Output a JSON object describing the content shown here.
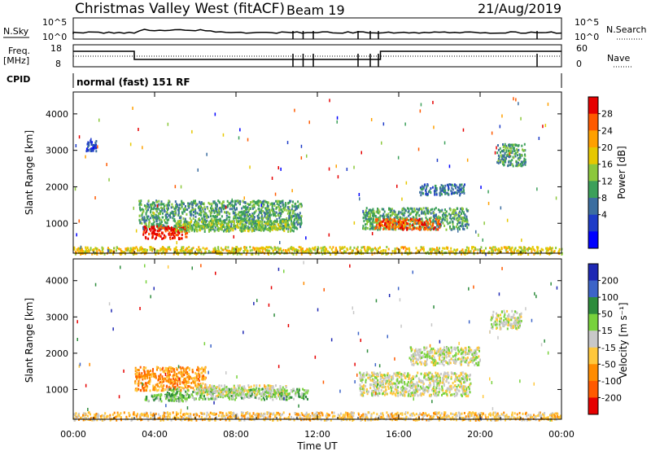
{
  "header": {
    "station": "Christmas Valley West (fitACF)",
    "beam": "Beam 19",
    "date": "21/Aug/2019"
  },
  "top_panels": {
    "nsky_label": "N.Sky",
    "nsky_ticks": [
      "10^5",
      "10^0"
    ],
    "nsearch_label": "N.Search",
    "nsearch_ticks": [
      "10^5",
      "10^0"
    ],
    "freq_label_line1": "Freq.",
    "freq_label_line2": "[MHz]",
    "freq_ticks": [
      "18",
      "8"
    ],
    "nave_label": "Nave",
    "nave_ticks": [
      "60",
      "0"
    ],
    "cpid_label": "CPID",
    "cpid_value": "normal (fast) 151 RF"
  },
  "x_axis": {
    "label": "Time UT",
    "ticks": [
      "00:00",
      "04:00",
      "08:00",
      "12:00",
      "16:00",
      "20:00",
      "00:00"
    ],
    "tick_hours": [
      0,
      4,
      8,
      12,
      16,
      20,
      24
    ]
  },
  "chart_data": [
    {
      "type": "heatmap",
      "name": "power",
      "ylabel": "Slant Range [km]",
      "yticks": [
        1000,
        2000,
        3000,
        4000
      ],
      "ylim": [
        180,
        4600
      ],
      "xlim_hours": [
        0,
        24
      ],
      "colorbar": {
        "label": "Power [dB]",
        "ticks": [
          "28",
          "24",
          "20",
          "16",
          "12",
          "8",
          "4"
        ],
        "colors": [
          "#e60000",
          "#ff5a00",
          "#ffa000",
          "#e6c800",
          "#8cc83c",
          "#3ca05a",
          "#3c6ea0",
          "#1e3cc8",
          "#0000ff"
        ]
      },
      "regions": [
        {
          "t0": 3.2,
          "t1": 11.2,
          "r0": 850,
          "r1": 1650,
          "level": 5
        },
        {
          "t0": 3.4,
          "t1": 5.6,
          "r0": 600,
          "r1": 950,
          "level": 0
        },
        {
          "t0": 5.0,
          "t1": 10.8,
          "r0": 800,
          "r1": 1100,
          "level": 4
        },
        {
          "t0": 14.2,
          "t1": 19.4,
          "r0": 850,
          "r1": 1450,
          "level": 5
        },
        {
          "t0": 14.8,
          "t1": 18.0,
          "r0": 850,
          "r1": 1150,
          "level": 1
        },
        {
          "t0": 0.6,
          "t1": 1.2,
          "r0": 3000,
          "r1": 3300,
          "level": 7
        },
        {
          "t0": 20.8,
          "t1": 22.2,
          "r0": 2600,
          "r1": 3200,
          "level": 5
        },
        {
          "t0": 17.0,
          "t1": 19.2,
          "r0": 1800,
          "r1": 2100,
          "level": 6
        },
        {
          "t0": 0.0,
          "t1": 24.0,
          "r0": 180,
          "r1": 380,
          "level": 3
        }
      ]
    },
    {
      "type": "heatmap",
      "name": "velocity",
      "ylabel": "Slant Range [km]",
      "yticks": [
        1000,
        2000,
        3000,
        4000
      ],
      "ylim": [
        180,
        4600
      ],
      "xlim_hours": [
        0,
        24
      ],
      "colorbar": {
        "label": "Velocity [m s⁻¹]",
        "ticks": [
          "200",
          "100",
          "50",
          "15",
          "-15",
          "-50",
          "-100",
          "-200"
        ],
        "colors": [
          "#1e28b4",
          "#3c64c8",
          "#2d8c3c",
          "#78d23c",
          "#c8c8c8",
          "#ffc83c",
          "#ff8c00",
          "#ff5a00",
          "#e60000"
        ]
      },
      "regions": [
        {
          "t0": 3.0,
          "t1": 6.5,
          "r0": 1000,
          "r1": 1650,
          "level": 6
        },
        {
          "t0": 4.5,
          "t1": 11.5,
          "r0": 750,
          "r1": 1050,
          "level": 3
        },
        {
          "t0": 3.5,
          "t1": 5.5,
          "r0": 700,
          "r1": 900,
          "level": 3
        },
        {
          "t0": 6.0,
          "t1": 10.5,
          "r0": 850,
          "r1": 1150,
          "level": 4
        },
        {
          "t0": 14.0,
          "t1": 19.5,
          "r0": 850,
          "r1": 1500,
          "level": 4
        },
        {
          "t0": 16.5,
          "t1": 20.0,
          "r0": 1700,
          "r1": 2200,
          "level": 4
        },
        {
          "t0": 20.5,
          "t1": 22.0,
          "r0": 2700,
          "r1": 3200,
          "level": 4
        },
        {
          "t0": 0.0,
          "t1": 24.0,
          "r0": 180,
          "r1": 400,
          "level": 5
        }
      ]
    }
  ]
}
